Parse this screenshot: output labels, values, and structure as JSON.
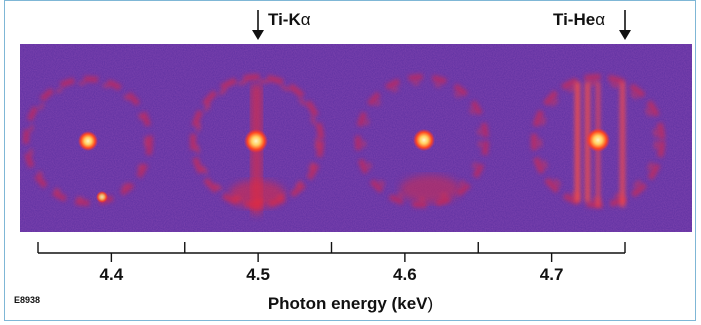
{
  "figure": {
    "id": "E8938",
    "markers": [
      {
        "text": "Ti-K",
        "greek": "α",
        "energy": 4.5
      },
      {
        "text": "Ti-He",
        "greek": "α",
        "energy": 4.75
      }
    ],
    "axis": {
      "title_main": "Photon energy (",
      "title_unit": "keV",
      "title_close": ")",
      "range": [
        4.35,
        4.75
      ],
      "major_ticks": [
        4.4,
        4.5,
        4.6,
        4.7
      ],
      "minor_ticks": [
        4.35,
        4.45,
        4.55,
        4.65,
        4.75
      ]
    },
    "colors": {
      "background": "#5a2fa0",
      "hot": "#ff3a2a",
      "bright": "#ffe8a0",
      "frame": "#7fb7d6"
    }
  },
  "chart_data": {
    "type": "image",
    "xlabel": "Photon energy (keV)",
    "xlim": [
      4.35,
      4.75
    ],
    "xticks": [
      4.4,
      4.5,
      4.6,
      4.7
    ],
    "annotations": [
      {
        "label": "Ti-Kα",
        "x": 4.5
      },
      {
        "label": "Ti-Heα",
        "x": 4.75
      }
    ]
  }
}
